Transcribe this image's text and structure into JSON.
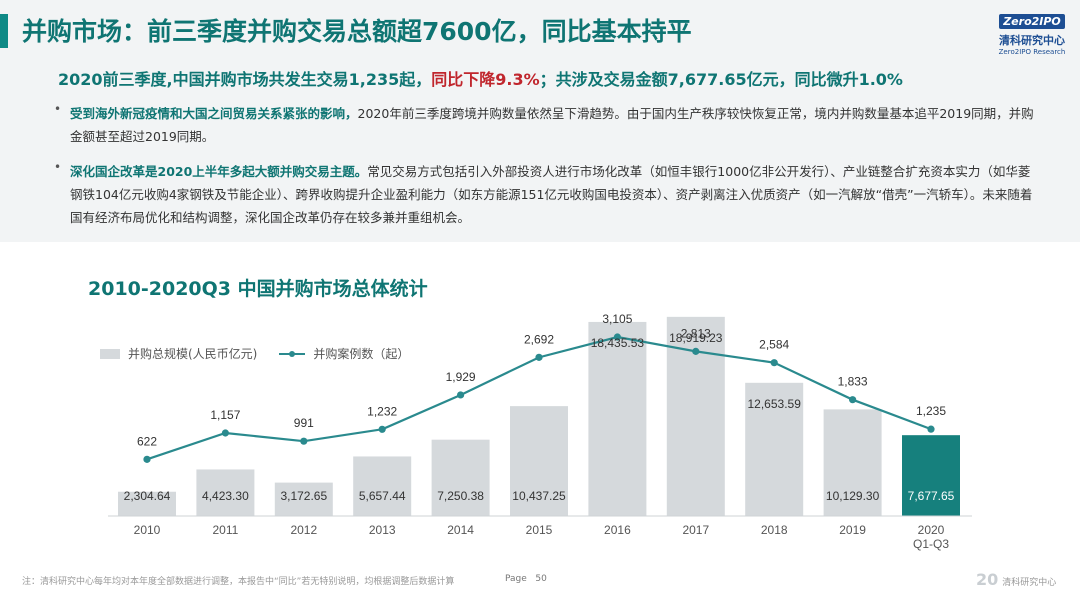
{
  "header": {
    "title": "并购市场：前三季度并购交易总额超7600亿，同比基本持平",
    "subtitle_a": "2020前三季度,中国并购市场共发生交易1,235起，",
    "subtitle_red": "同比下降9.3%",
    "subtitle_b": "；共涉及交易金额7,677.65亿元，同比微升1.0%"
  },
  "logo": {
    "badge": "Zero2IPO",
    "cn": "清科研究中心",
    "en": "Zero2IPO Research"
  },
  "bullets": [
    {
      "highlight": "受到海外新冠疫情和大国之间贸易关系紧张的影响，",
      "text": "2020年前三季度跨境并购数量依然呈下滑趋势。由于国内生产秩序较快恢复正常，境内并购数量基本追平2019同期，并购金额甚至超过2019同期。"
    },
    {
      "highlight": "深化国企改革是2020上半年多起大额并购交易主题。",
      "text": "常见交易方式包括引入外部投资人进行市场化改革（如恒丰银行1000亿非公开发行）、产业链整合扩充资本实力（如华菱钢铁104亿元收购4家钢铁及节能企业）、跨界收购提升企业盈利能力（如东方能源151亿元收购国电投资本）、资产剥离注入优质资产（如一汽解放“借壳”一汽轿车）。未来随着国有经济布局优化和结构调整，深化国企改革仍存在较多兼并重组机会。"
    }
  ],
  "chart_title": "2010-2020Q3 中国并购市场总体统计",
  "chart_data": {
    "type": "bar",
    "title": "2010-2020Q3 中国并购市场总体统计",
    "categories": [
      "2010",
      "2011",
      "2012",
      "2013",
      "2014",
      "2015",
      "2016",
      "2017",
      "2018",
      "2019",
      "2020 Q1-Q3"
    ],
    "series": [
      {
        "name": "并购总规模(人民币亿元)",
        "type": "bar",
        "labels": [
          "2,304.64",
          "4,423.30",
          "3,172.65",
          "5,657.44",
          "7,250.38",
          "10,437.25",
          "18,435.53",
          "18,919.23",
          "12,653.59",
          "10,129.30",
          "7,677.65"
        ],
        "values": [
          2304.64,
          4423.3,
          3172.65,
          5657.44,
          7250.38,
          10437.25,
          18435.53,
          18919.23,
          12653.59,
          10129.3,
          7677.65
        ]
      },
      {
        "name": "并购案例数（起）",
        "type": "line",
        "labels": [
          "622",
          "1,157",
          "991",
          "1,232",
          "1,929",
          "2,692",
          "3,105",
          "2,813",
          "2,584",
          "1,833",
          "1,235"
        ],
        "values": [
          622,
          1157,
          991,
          1232,
          1929,
          2692,
          3105,
          2813,
          2584,
          1833,
          1235
        ]
      }
    ],
    "highlight_index": 10,
    "colors": {
      "bar": "#d5d9dc",
      "bar_highlight": "#16807d",
      "line": "#2a8a8e"
    },
    "legend_position": "top-left",
    "grid": false
  },
  "footer": {
    "note": "注：清科研究中心每年均对本年度全部数据进行调整，本报告中“同比”若无特别说明，均根据调整后数据计算",
    "page_label": "Page",
    "page_number": "50",
    "logo_text": "清科研究中心",
    "logo_mark": "20"
  }
}
